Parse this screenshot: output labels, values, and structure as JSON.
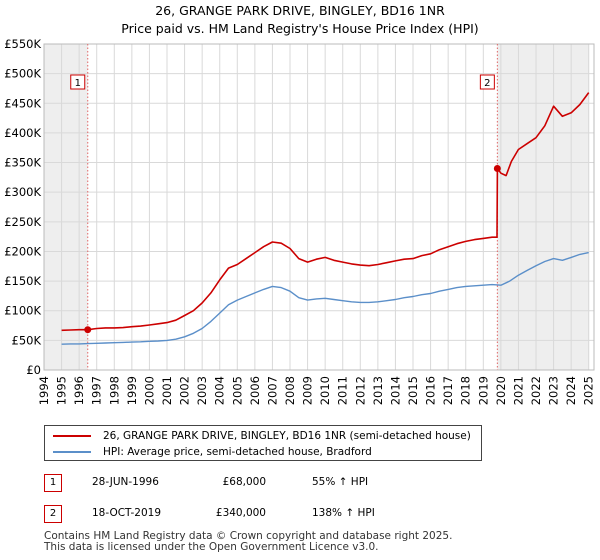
{
  "chart_data": {
    "type": "line",
    "title": "26, GRANGE PARK DRIVE, BINGLEY, BD16 1NR",
    "subtitle": "Price paid vs. HM Land Registry's House Price Index (HPI)",
    "xlim": [
      1994,
      2025.3
    ],
    "ylim": [
      0,
      550000
    ],
    "x_ticks": [
      1994,
      1995,
      1996,
      1997,
      1998,
      1999,
      2000,
      2001,
      2002,
      2003,
      2004,
      2005,
      2006,
      2007,
      2008,
      2009,
      2010,
      2011,
      2012,
      2013,
      2014,
      2015,
      2016,
      2017,
      2018,
      2019,
      2020,
      2021,
      2022,
      2023,
      2024,
      2025
    ],
    "y_ticks": [
      {
        "value": 0,
        "label": "£0"
      },
      {
        "value": 50000,
        "label": "£50K"
      },
      {
        "value": 100000,
        "label": "£100K"
      },
      {
        "value": 150000,
        "label": "£150K"
      },
      {
        "value": 200000,
        "label": "£200K"
      },
      {
        "value": 250000,
        "label": "£250K"
      },
      {
        "value": 300000,
        "label": "£300K"
      },
      {
        "value": 350000,
        "label": "£350K"
      },
      {
        "value": 400000,
        "label": "£400K"
      },
      {
        "value": 450000,
        "label": "£450K"
      },
      {
        "value": 500000,
        "label": "£500K"
      },
      {
        "value": 550000,
        "label": "£550K"
      }
    ],
    "grid": true,
    "series": [
      {
        "name": "26, GRANGE PARK DRIVE, BINGLEY, BD16 1NR (semi-detached house)",
        "color": "#cc0000",
        "x": [
          1995.0,
          1995.5,
          1996.0,
          1996.49,
          1997.0,
          1997.5,
          1998.0,
          1998.5,
          1999.0,
          1999.5,
          2000.0,
          2000.5,
          2001.0,
          2001.5,
          2002.0,
          2002.5,
          2003.0,
          2003.5,
          2004.0,
          2004.5,
          2005.0,
          2005.5,
          2006.0,
          2006.5,
          2007.0,
          2007.5,
          2008.0,
          2008.5,
          2009.0,
          2009.5,
          2010.0,
          2010.5,
          2011.0,
          2011.5,
          2012.0,
          2012.5,
          2013.0,
          2013.5,
          2014.0,
          2014.5,
          2015.0,
          2015.5,
          2016.0,
          2016.5,
          2017.0,
          2017.5,
          2018.0,
          2018.5,
          2019.0,
          2019.5,
          2019.78,
          2019.8,
          2020.0,
          2020.3,
          2020.6,
          2021.0,
          2021.5,
          2022.0,
          2022.5,
          2023.0,
          2023.5,
          2024.0,
          2024.5,
          2025.0
        ],
        "values": [
          67000,
          67500,
          68000,
          68000,
          70000,
          71000,
          71000,
          71500,
          73000,
          74000,
          76000,
          78000,
          80000,
          84000,
          92000,
          100000,
          113000,
          130000,
          152000,
          172000,
          178000,
          188000,
          198000,
          208000,
          216000,
          214000,
          205000,
          188000,
          182000,
          187000,
          190000,
          185000,
          182000,
          179000,
          177000,
          176000,
          178000,
          181000,
          184000,
          187000,
          188000,
          193000,
          196000,
          203000,
          208000,
          213000,
          217000,
          220000,
          222000,
          224000,
          224000,
          340000,
          332000,
          328000,
          352000,
          372000,
          382000,
          392000,
          412000,
          445000,
          428000,
          434000,
          448000,
          468000
        ]
      },
      {
        "name": "HPI: Average price, semi-detached house, Bradford",
        "color": "#5b8fc9",
        "x": [
          1995.0,
          1995.5,
          1996.0,
          1996.5,
          1997.0,
          1997.5,
          1998.0,
          1998.5,
          1999.0,
          1999.5,
          2000.0,
          2000.5,
          2001.0,
          2001.5,
          2002.0,
          2002.5,
          2003.0,
          2003.5,
          2004.0,
          2004.5,
          2005.0,
          2005.5,
          2006.0,
          2006.5,
          2007.0,
          2007.5,
          2008.0,
          2008.5,
          2009.0,
          2009.5,
          2010.0,
          2010.5,
          2011.0,
          2011.5,
          2012.0,
          2012.5,
          2013.0,
          2013.5,
          2014.0,
          2014.5,
          2015.0,
          2015.5,
          2016.0,
          2016.5,
          2017.0,
          2017.5,
          2018.0,
          2018.5,
          2019.0,
          2019.5,
          2020.0,
          2020.5,
          2021.0,
          2021.5,
          2022.0,
          2022.5,
          2023.0,
          2023.5,
          2024.0,
          2024.5,
          2025.0
        ],
        "values": [
          43500,
          44000,
          44000,
          44500,
          45000,
          45500,
          46000,
          46500,
          47000,
          47500,
          48500,
          49000,
          50000,
          52000,
          56000,
          62000,
          70000,
          82000,
          96000,
          110000,
          118000,
          124000,
          130000,
          136000,
          141000,
          139000,
          133000,
          122000,
          118000,
          120000,
          121000,
          119000,
          117000,
          115000,
          114000,
          114000,
          115000,
          117000,
          119000,
          122000,
          124000,
          127000,
          129000,
          133000,
          136000,
          139000,
          141000,
          142000,
          143000,
          144000,
          143000,
          150000,
          160000,
          168000,
          176000,
          183000,
          188000,
          185000,
          190000,
          195000,
          198000
        ]
      }
    ],
    "annotations": [
      {
        "label": "1",
        "x": 1996.49,
        "y": 68000
      },
      {
        "label": "2",
        "x": 2019.8,
        "y": 340000
      }
    ]
  },
  "legend": {
    "items": [
      {
        "label": "26, GRANGE PARK DRIVE, BINGLEY, BD16 1NR (semi-detached house)",
        "color": "#cc0000"
      },
      {
        "label": "HPI: Average price, semi-detached house, Bradford",
        "color": "#5b8fc9"
      }
    ]
  },
  "sales": [
    {
      "num": "1",
      "date": "28-JUN-1996",
      "price": "£68,000",
      "hpi": "55% ↑ HPI"
    },
    {
      "num": "2",
      "date": "18-OCT-2019",
      "price": "£340,000",
      "hpi": "138% ↑ HPI"
    }
  ],
  "footer": {
    "line1": "Contains HM Land Registry data © Crown copyright and database right 2025.",
    "line2": "This data is licensed under the Open Government Licence v3.0."
  }
}
